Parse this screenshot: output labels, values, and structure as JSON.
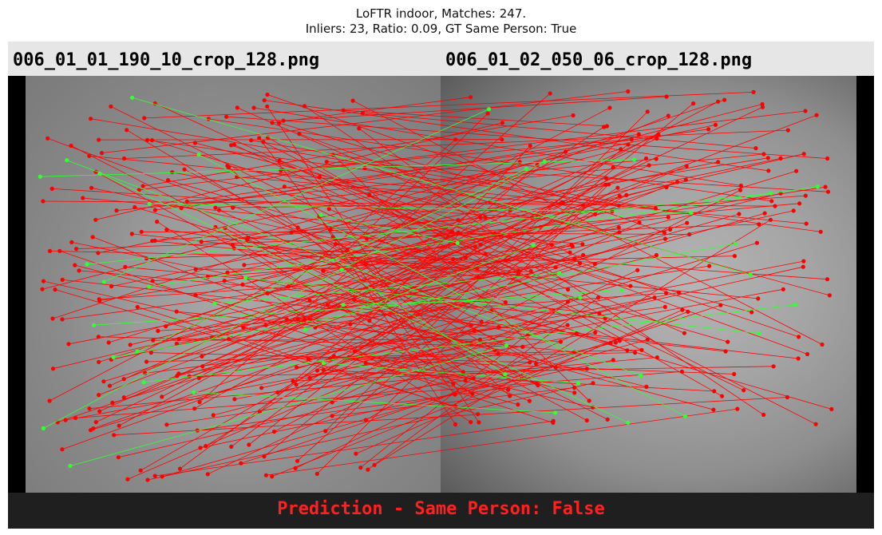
{
  "title": {
    "line1": "LoFTR indoor, Matches: 247.",
    "line2": "Inliers: 23, Ratio: 0.09, GT Same Person: True"
  },
  "images": {
    "left_filename": "006_01_01_190_10_crop_128.png",
    "right_filename": "006_01_02_050_06_crop_128.png"
  },
  "prediction_text": "Prediction - Same Person: False",
  "stats": {
    "matches": 247,
    "inliers": 23,
    "ratio": 0.09
  },
  "colors": {
    "outlier": "#ff0000",
    "inlier": "#33ff33",
    "prediction": "#ff2020"
  }
}
